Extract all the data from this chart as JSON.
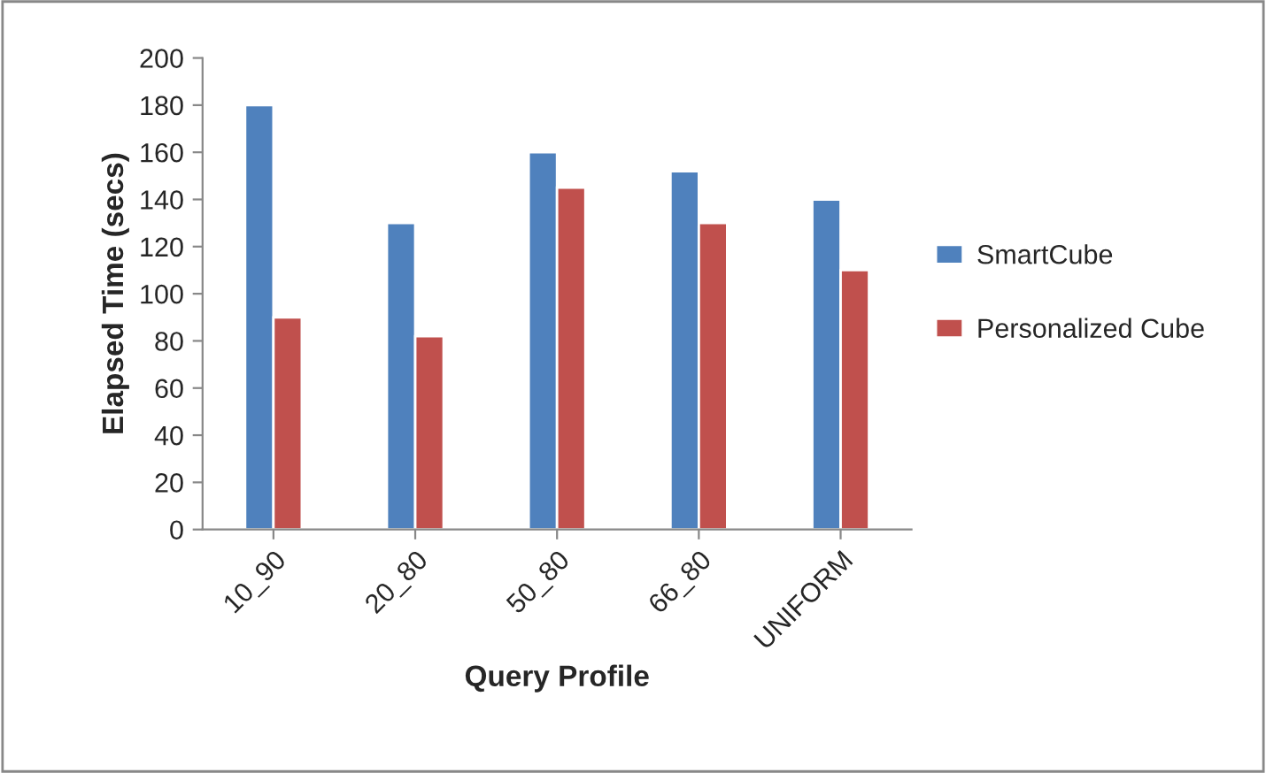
{
  "chart_data": {
    "type": "bar",
    "xlabel": "Query Profile",
    "ylabel": "Elapsed Time (secs)",
    "categories": [
      "10_90",
      "20_80",
      "50_80",
      "66_80",
      "UNIFORM"
    ],
    "series": [
      {
        "name": "SmartCube",
        "color": "#4f81bd",
        "values": [
          180,
          130,
          160,
          152,
          140
        ]
      },
      {
        "name": "Personalized Cube",
        "color": "#c0504d",
        "values": [
          90,
          82,
          145,
          130,
          110
        ]
      }
    ],
    "ylim": [
      0,
      200
    ],
    "yticks": [
      0,
      20,
      40,
      60,
      80,
      100,
      120,
      140,
      160,
      180,
      200
    ],
    "grid": false,
    "legend": "right"
  }
}
